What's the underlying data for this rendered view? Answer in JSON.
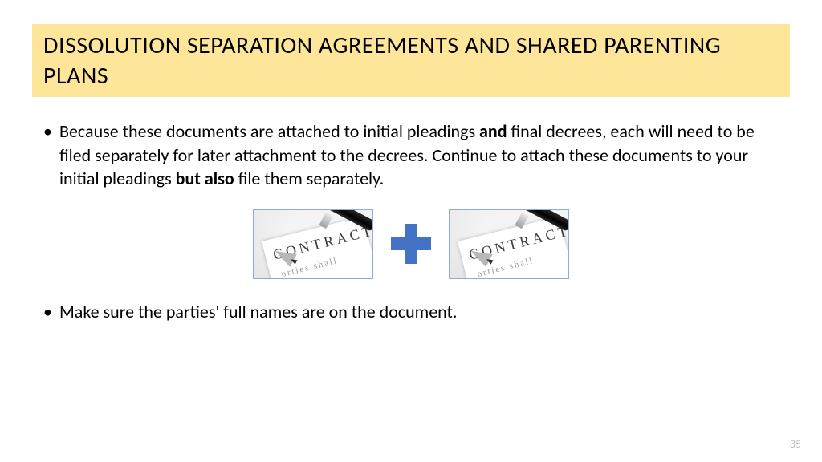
{
  "slide": {
    "title": "DISSOLUTION SEPARATION AGREEMENTS AND SHARED PARENTING PLANS",
    "title_bg": "#fde699",
    "title_color": "#000000",
    "bullets": [
      {
        "segments": [
          {
            "t": "Because these documents are attached to initial pleadings ",
            "bold": false
          },
          {
            "t": "and",
            "bold": true
          },
          {
            "t": " final decrees, each will need to be filed separately for later attachment to the decrees.  Continue to attach these documents to your initial pleadings ",
            "bold": false
          },
          {
            "t": "but also",
            "bold": true
          },
          {
            "t": " file them separately.",
            "bold": false
          }
        ]
      },
      {
        "segments": [
          {
            "t": "Make sure the parties' full names are on the document.",
            "bold": false
          }
        ]
      }
    ],
    "image_row": {
      "left_label": "CONTRACT",
      "left_sub": "orties shall",
      "right_label": "CONTRACT",
      "right_sub": "orties shall",
      "plus_color": "#4472c4",
      "border_color": "#8faadc"
    },
    "page_number": "35",
    "body_fontsize": 22,
    "title_fontsize": 30,
    "background": "#ffffff"
  }
}
